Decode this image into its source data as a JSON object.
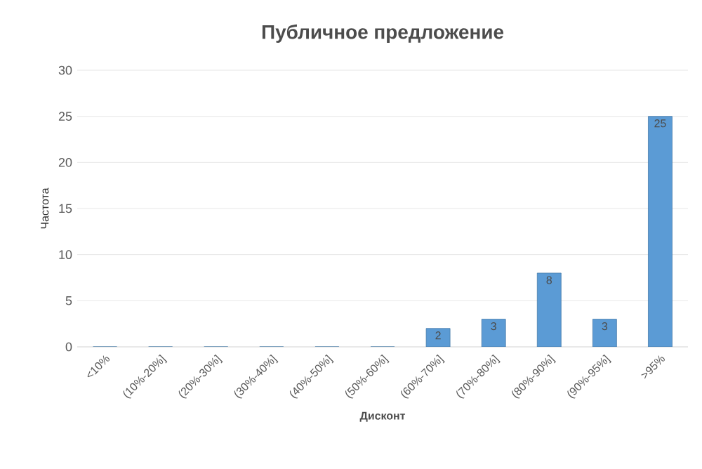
{
  "chart_data": {
    "type": "bar",
    "title": "Публичное предложение",
    "xlabel": "Дисконт",
    "ylabel": "Частота",
    "categories": [
      "<10%",
      "(10%-20%]",
      "(20%-30%]",
      "(30%-40%]",
      "(40%-50%]",
      "(50%-60%]",
      "(60%-70%]",
      "(70%-80%]",
      "(80%-90%]",
      "(90%-95%]",
      ">95%"
    ],
    "values": [
      0,
      0,
      0,
      0,
      0,
      0,
      2,
      3,
      8,
      3,
      25
    ],
    "value_labels": [
      null,
      null,
      null,
      null,
      null,
      null,
      "2",
      "3",
      "8",
      "3",
      "25"
    ],
    "color": "#5b9bd5",
    "ylim": [
      0,
      30
    ],
    "yticks": [
      0,
      5,
      10,
      15,
      20,
      25,
      30
    ],
    "grid": "y"
  }
}
